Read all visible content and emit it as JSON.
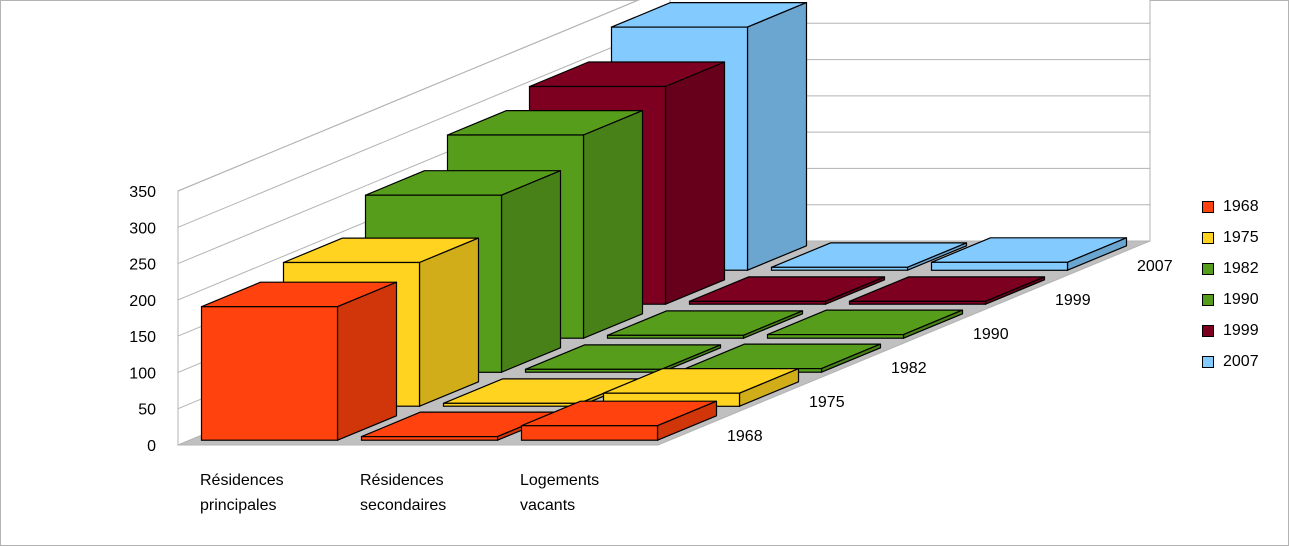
{
  "chart_data": {
    "type": "bar",
    "subtype": "3d-clustered-depth",
    "title": "",
    "xlabel": "",
    "ylabel": "",
    "ylim": [
      0,
      350
    ],
    "yticks": [
      0,
      50,
      100,
      150,
      200,
      250,
      300,
      350
    ],
    "categories": [
      "Résidences principales",
      "Résidences secondaires",
      "Logements vacants"
    ],
    "category_lines": [
      [
        "Résidences",
        "principales"
      ],
      [
        "Résidences",
        "secondaires"
      ],
      [
        "Logements",
        "vacants"
      ]
    ],
    "series": [
      {
        "name": "1968",
        "color": "#ff420e",
        "values": [
          184,
          5,
          20
        ]
      },
      {
        "name": "1975",
        "color": "#ffd320",
        "values": [
          198,
          4,
          18
        ]
      },
      {
        "name": "1982",
        "color": "#579d1c",
        "values": [
          244,
          4,
          5
        ]
      },
      {
        "name": "1990",
        "color": "#579d1c",
        "values": [
          280,
          4,
          5
        ]
      },
      {
        "name": "1999",
        "color": "#7e0021",
        "values": [
          300,
          4,
          4
        ]
      },
      {
        "name": "2007",
        "color": "#83caff",
        "values": [
          335,
          4,
          11
        ]
      }
    ],
    "grid": true,
    "legend": "right"
  }
}
